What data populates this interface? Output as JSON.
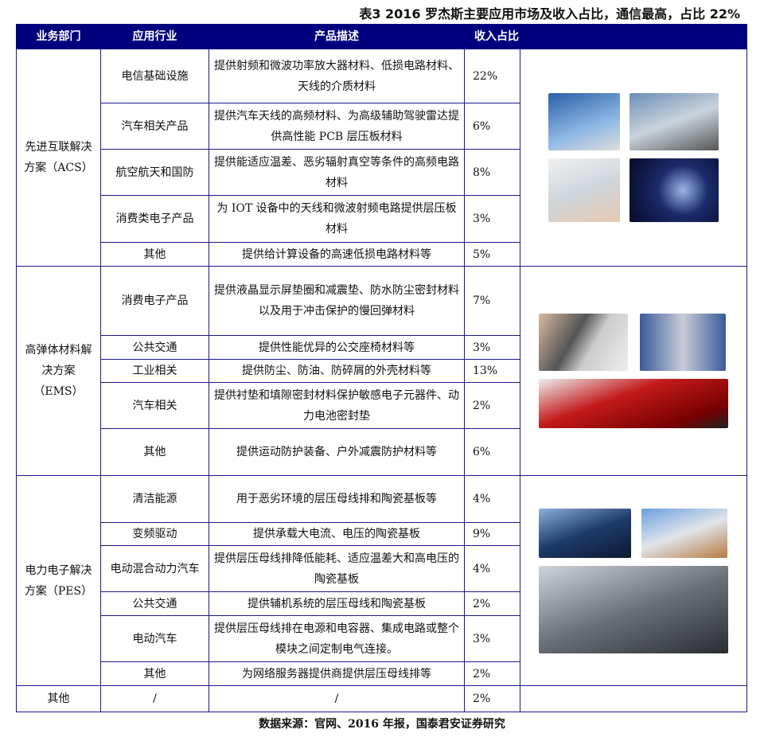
{
  "title": "表3  2016 罗杰斯主要应用市场及收入占比，通信最高，占比 22%",
  "headers": [
    "业务部门",
    "应用行业",
    "产品描述",
    "收入占比"
  ],
  "groups": [
    {
      "dept": "先进互联解决方案（ACS）",
      "rows": [
        {
          "industry": "电信基础设施",
          "desc": "提供射频和微波功率放大器材料、低损电路材料、天线的介质材料",
          "pct": "22%"
        },
        {
          "industry": "汽车相关产品",
          "desc": "提供汽车天线的高频材料、为高级辅助驾驶雷达提供高性能 PCB 层压板材料",
          "pct": "6%"
        },
        {
          "industry": "航空航天和国防",
          "desc": "提供能适应温差、恶劣辐射真空等条件的高频电路材料",
          "pct": "8%"
        },
        {
          "industry": "消费类电子产品",
          "desc": "为 IOT 设备中的天线和微波射频电路提供层压板材料",
          "pct": "3%"
        },
        {
          "industry": "其他",
          "desc": "提供给计算设备的高速低损电路材料等",
          "pct": "5%"
        }
      ],
      "images": [
        "antenna-photo",
        "car-photo",
        "tablet-photo",
        "satellite-photo"
      ]
    },
    {
      "dept": "高弹体材料解决方案（EMS）",
      "rows": [
        {
          "industry": "消费电子产品",
          "desc": "提供液晶显示屏垫圈和减震垫、防水防尘密封材料以及用于冲击保护的慢回弹材料",
          "pct": "7%"
        },
        {
          "industry": "公共交通",
          "desc": "提供性能优异的公交座椅材料等",
          "pct": "3%"
        },
        {
          "industry": "工业相关",
          "desc": "提供防尘、防油、防碎屑的外壳材料等",
          "pct": "13%"
        },
        {
          "industry": "汽车相关",
          "desc": "提供衬垫和填隙密封材料保护敏感电子元器件、动力电池密封垫",
          "pct": "2%"
        },
        {
          "industry": "其他",
          "desc": "提供运动防护装备、户外减震防护材料等",
          "pct": "6%"
        }
      ],
      "images": [
        "ereader-photo",
        "train-interior-photo",
        "red-car-photo"
      ]
    },
    {
      "dept": "电力电子解决方案（PES）",
      "rows": [
        {
          "industry": "清洁能源",
          "desc": "用于恶劣环境的层压母线排和陶瓷基板等",
          "pct": "4%"
        },
        {
          "industry": "变频驱动",
          "desc": "提供承载大电流、电压的陶瓷基板",
          "pct": "9%"
        },
        {
          "industry": "电动混合动力汽车",
          "desc": "提供层压母线排降低能耗、适应温差大和高电压的陶瓷基板",
          "pct": "4%"
        },
        {
          "industry": "公共交通",
          "desc": "提供辅机系统的层压母线和陶瓷基板",
          "pct": "2%"
        },
        {
          "industry": "电动汽车",
          "desc": "提供层压母线排在电源和电容器、集成电路或整个模块之间定制电气连接。",
          "pct": "3%"
        },
        {
          "industry": "其他",
          "desc": "为网络服务器提供商提供层压母线排等",
          "pct": "2%"
        }
      ],
      "images": [
        "solar-panel-photo",
        "high-speed-train-photo",
        "silver-car-photo"
      ]
    }
  ],
  "other": {
    "dept": "其他",
    "industry": "/",
    "desc": "/",
    "pct": "2%"
  },
  "source": "数据来源：官网、2016 年报，国泰君安证券研究",
  "colors": {
    "header_bg": "#00007f",
    "border": "#1a1a8c"
  }
}
